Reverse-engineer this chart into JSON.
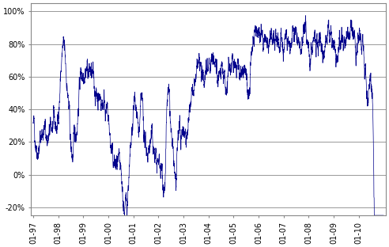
{
  "line_color": "#00008B",
  "line_width": 0.5,
  "background_color": "#ffffff",
  "ylim": [
    -0.25,
    1.05
  ],
  "yticks": [
    -0.2,
    0.0,
    0.2,
    0.4,
    0.6,
    0.8,
    1.0
  ],
  "ytick_labels": [
    "-20%",
    "0%",
    "20%",
    "40%",
    "60%",
    "80%",
    "100%"
  ],
  "xtick_labels": [
    "01-97",
    "01-98",
    "01-99",
    "01-00",
    "01-01",
    "01-02",
    "01-03",
    "01-04",
    "01-05",
    "01-06",
    "01-07",
    "01-08",
    "01-09",
    "01-10"
  ],
  "grid_color": "#888888",
  "fig_width": 4.92,
  "fig_height": 3.12,
  "dpi": 100
}
